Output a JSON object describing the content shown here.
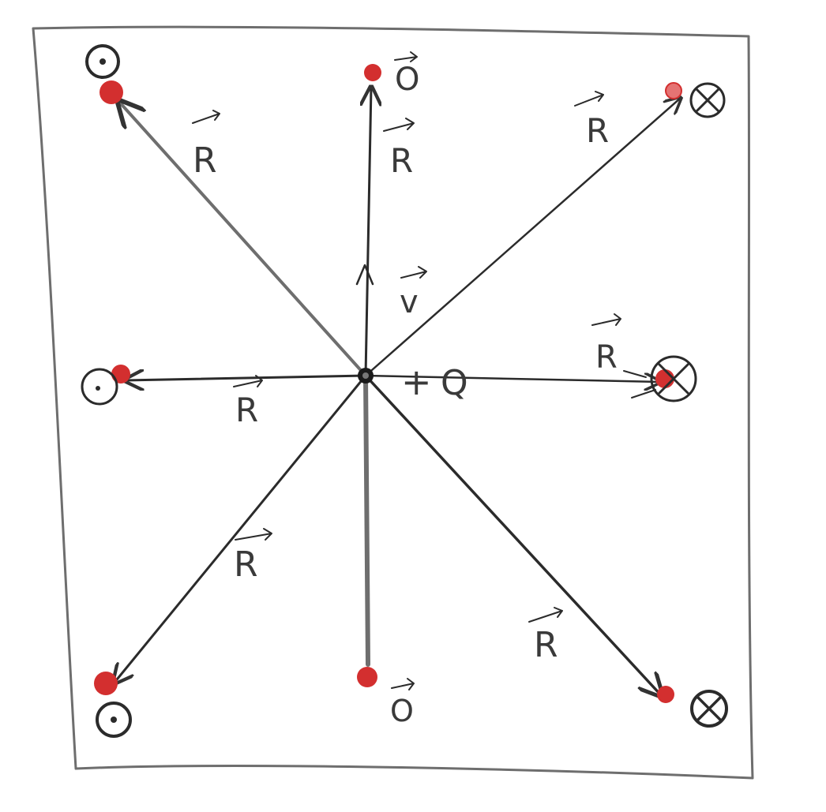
{
  "diagram": {
    "labels": {
      "top": "O",
      "bottom": "O",
      "velocity": "v",
      "charge_sign": "+",
      "charge_symbol": "Q",
      "position_vector": "R"
    },
    "colors": {
      "paper": "#ffffff",
      "pencil": "#6e6e6e",
      "ink": "#2b2b2b",
      "test_point": "#d32f2f",
      "test_point_light": "#e57373"
    },
    "field_symbols": {
      "left_side": "dot-in-circle (out of page)",
      "right_side": "cross-in-circle (into page)",
      "top_bottom": "zero"
    }
  }
}
